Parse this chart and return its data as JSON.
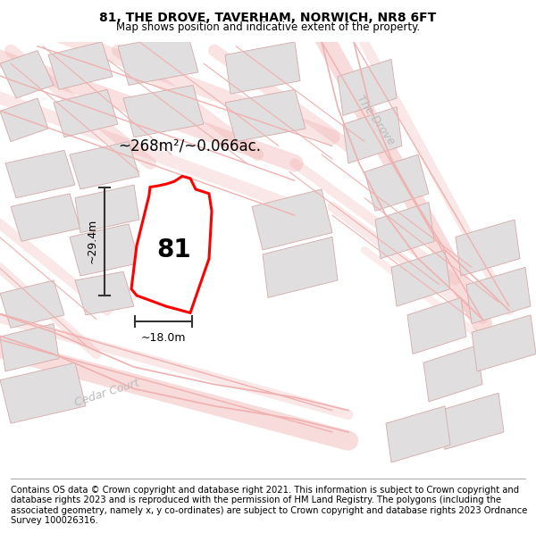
{
  "title": "81, THE DROVE, TAVERHAM, NORWICH, NR8 6FT",
  "subtitle": "Map shows position and indicative extent of the property.",
  "footer": "Contains OS data © Crown copyright and database right 2021. This information is subject to Crown copyright and database rights 2023 and is reproduced with the permission of HM Land Registry. The polygons (including the associated geometry, namely x, y co-ordinates) are subject to Crown copyright and database rights 2023 Ordnance Survey 100026316.",
  "area_label": "~268m²/~0.066ac.",
  "number_label": "81",
  "width_label": "~18.0m",
  "height_label": "~29.4m",
  "road_label_1": "The Drove",
  "road_label_2": "Cedar Court",
  "title_fontsize": 10,
  "subtitle_fontsize": 8.5,
  "footer_fontsize": 7.2,
  "label_fontsize": 12,
  "number_fontsize": 20,
  "road_fontsize": 9,
  "map_bg": "#fafafa",
  "building_fill": "#e0dede",
  "building_edge": "#d4aaaa",
  "road_color": "#f0b0b0",
  "plot_fill": "white",
  "plot_edge": "red",
  "dim_color": "#333333",
  "road_label_color": "#bbbbbb",
  "footer_line_color": "#999999"
}
